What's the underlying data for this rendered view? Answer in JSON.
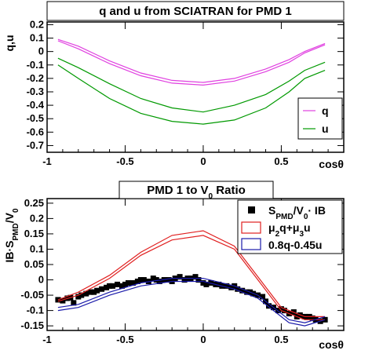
{
  "chart_data": [
    {
      "type": "line",
      "title": "q and u from SCIATRAN for PMD 1",
      "xlabel": "cosθ",
      "ylabel": "q,u",
      "xlim": [
        -1.0,
        0.9
      ],
      "ylim": [
        -0.75,
        0.22
      ],
      "xticks": [
        -1,
        -0.5,
        0,
        0.5
      ],
      "xtick_labels": [
        "-1",
        "-0.5",
        "0",
        "0.5"
      ],
      "yticks": [
        0.2,
        0.1,
        0,
        -0.1,
        -0.2,
        -0.3,
        -0.4,
        -0.5,
        -0.6,
        -0.7
      ],
      "ytick_labels": [
        "0.2",
        "0.1",
        "0",
        "-0.1",
        "-0.2",
        "-0.3",
        "-0.4",
        "-0.5",
        "-0.6",
        "-0.7"
      ],
      "legend_position": "right",
      "series": [
        {
          "name": "q",
          "color": "#e040e0",
          "x": [
            -0.93,
            -0.8,
            -0.6,
            -0.4,
            -0.2,
            0.0,
            0.2,
            0.4,
            0.55,
            0.65,
            0.78
          ],
          "y": [
            0.09,
            0.04,
            -0.07,
            -0.16,
            -0.215,
            -0.23,
            -0.2,
            -0.13,
            -0.06,
            0.0,
            0.06
          ]
        },
        {
          "name": "q",
          "color": "#e040e0",
          "x": [
            -0.93,
            -0.8,
            -0.6,
            -0.4,
            -0.2,
            0.0,
            0.2,
            0.4,
            0.55,
            0.65,
            0.78
          ],
          "y": [
            0.08,
            0.02,
            -0.09,
            -0.18,
            -0.235,
            -0.25,
            -0.22,
            -0.15,
            -0.08,
            -0.01,
            0.05
          ]
        },
        {
          "name": "u",
          "color": "#009900",
          "x": [
            -0.93,
            -0.8,
            -0.6,
            -0.4,
            -0.2,
            0.0,
            0.2,
            0.4,
            0.55,
            0.65,
            0.78
          ],
          "y": [
            -0.05,
            -0.12,
            -0.24,
            -0.35,
            -0.42,
            -0.45,
            -0.4,
            -0.32,
            -0.22,
            -0.14,
            -0.08
          ]
        },
        {
          "name": "u",
          "color": "#009900",
          "x": [
            -0.93,
            -0.8,
            -0.6,
            -0.4,
            -0.2,
            0.0,
            0.2,
            0.4,
            0.55,
            0.65,
            0.78
          ],
          "y": [
            -0.1,
            -0.2,
            -0.35,
            -0.46,
            -0.52,
            -0.54,
            -0.51,
            -0.42,
            -0.3,
            -0.2,
            -0.14
          ]
        }
      ],
      "legend": [
        "q",
        "u"
      ]
    },
    {
      "type": "scatter",
      "title": "PMD 1 to V₀ Ratio",
      "xlabel": "cosθ",
      "ylabel": "IB·S_PMD/V₀",
      "xlim": [
        -1.0,
        0.9
      ],
      "ylim": [
        -0.165,
        0.265
      ],
      "xticks": [
        -1,
        -0.5,
        0,
        0.5
      ],
      "xtick_labels": [
        "-1",
        "-0.5",
        "0",
        "0.5"
      ],
      "yticks": [
        0.25,
        0.2,
        0.15,
        0.1,
        0.05,
        0,
        -0.05,
        -0.1,
        -0.15
      ],
      "ytick_labels": [
        "0.25",
        "0.2",
        "0.15",
        "0.1",
        "0.05",
        "0",
        "-0.05",
        "-0.1",
        "-0.15"
      ],
      "legend_position": "top-right",
      "legend": [
        "S_PMD/V₀·IB",
        "μ₂q+μ₃u",
        "0.8q-0.45u"
      ],
      "series": [
        {
          "name": "S_PMD/V₀·IB",
          "color": "#000000",
          "x": [
            -0.93,
            -0.9,
            -0.87,
            -0.85,
            -0.83,
            -0.8,
            -0.78,
            -0.75,
            -0.72,
            -0.7,
            -0.68,
            -0.65,
            -0.62,
            -0.6,
            -0.58,
            -0.55,
            -0.52,
            -0.5,
            -0.48,
            -0.45,
            -0.42,
            -0.4,
            -0.38,
            -0.35,
            -0.32,
            -0.3,
            -0.28,
            -0.25,
            -0.22,
            -0.2,
            -0.18,
            -0.15,
            -0.12,
            -0.1,
            -0.08,
            -0.05,
            -0.03,
            0.0,
            0.02,
            0.05,
            0.08,
            0.1,
            0.12,
            0.15,
            0.18,
            0.2,
            0.22,
            0.25,
            0.28,
            0.3,
            0.32,
            0.35,
            0.38,
            0.4,
            0.42,
            0.45,
            0.48,
            0.5,
            0.52,
            0.55,
            0.58,
            0.6,
            0.62,
            0.65,
            0.68,
            0.7,
            0.72,
            0.75,
            0.78
          ],
          "y": [
            -0.065,
            -0.068,
            -0.06,
            -0.058,
            -0.075,
            -0.055,
            -0.05,
            -0.045,
            -0.04,
            -0.04,
            -0.035,
            -0.03,
            -0.025,
            -0.02,
            -0.02,
            -0.015,
            -0.02,
            -0.015,
            -0.01,
            -0.01,
            -0.005,
            0.0,
            0.0,
            -0.005,
            0.005,
            0.0,
            -0.005,
            0.0,
            0.0,
            -0.005,
            0.005,
            0.01,
            0.0,
            0.005,
            0.005,
            0.01,
            0.0,
            -0.01,
            -0.015,
            -0.01,
            -0.015,
            -0.015,
            -0.02,
            -0.02,
            -0.025,
            -0.02,
            -0.03,
            -0.035,
            -0.04,
            -0.04,
            -0.045,
            -0.05,
            -0.055,
            -0.07,
            -0.085,
            -0.09,
            -0.1,
            -0.095,
            -0.1,
            -0.11,
            -0.105,
            -0.12,
            -0.115,
            -0.12,
            -0.12,
            -0.125,
            -0.13,
            -0.135,
            -0.13
          ]
        },
        {
          "name": "μ₂q+μ₃u",
          "color": "#e02020",
          "x": [
            -0.93,
            -0.8,
            -0.6,
            -0.4,
            -0.2,
            0.0,
            0.2,
            0.35,
            0.5,
            0.65,
            0.78
          ],
          "y": [
            -0.065,
            -0.04,
            0.015,
            0.09,
            0.145,
            0.16,
            0.11,
            0.01,
            -0.09,
            -0.12,
            -0.12
          ]
        },
        {
          "name": "μ₂q+μ₃u",
          "color": "#e02020",
          "x": [
            -0.93,
            -0.8,
            -0.6,
            -0.4,
            -0.2,
            0.0,
            0.2,
            0.35,
            0.5,
            0.65,
            0.78
          ],
          "y": [
            -0.07,
            -0.05,
            0.005,
            0.08,
            0.13,
            0.145,
            0.1,
            0.0,
            -0.1,
            -0.13,
            -0.13
          ]
        },
        {
          "name": "0.8q-0.45u",
          "color": "#1a1aaa",
          "x": [
            -0.93,
            -0.8,
            -0.6,
            -0.4,
            -0.2,
            0.0,
            0.2,
            0.35,
            0.45,
            0.55,
            0.65,
            0.78
          ],
          "y": [
            -0.09,
            -0.08,
            -0.04,
            -0.01,
            0.005,
            0.005,
            -0.02,
            -0.05,
            -0.09,
            -0.13,
            -0.14,
            -0.12
          ]
        },
        {
          "name": "0.8q-0.45u",
          "color": "#1a1aaa",
          "x": [
            -0.93,
            -0.8,
            -0.6,
            -0.4,
            -0.2,
            0.0,
            0.2,
            0.35,
            0.45,
            0.55,
            0.65,
            0.78
          ],
          "y": [
            -0.1,
            -0.09,
            -0.05,
            -0.02,
            -0.005,
            -0.005,
            -0.03,
            -0.06,
            -0.1,
            -0.14,
            -0.15,
            -0.13
          ]
        }
      ]
    }
  ]
}
